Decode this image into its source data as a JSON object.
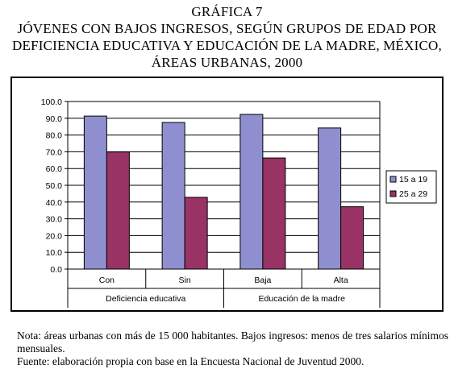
{
  "header": {
    "label": "GRÁFICA 7",
    "title_lines": [
      "JÓVENES CON BAJOS INGRESOS, SEGÚN GRUPOS DE EDAD POR",
      "DEFICIENCIA EDUCATIVA Y EDUCACIÓN DE LA MADRE, MÉXICO,",
      "ÁREAS URBANAS, 2000"
    ]
  },
  "chart_data": {
    "type": "bar",
    "categories": [
      "Con",
      "Sin",
      "Baja",
      "Alta"
    ],
    "groups": [
      {
        "label": "Deficiencia educativa",
        "categories": [
          "Con",
          "Sin"
        ]
      },
      {
        "label": "Educación de la madre",
        "categories": [
          "Baja",
          "Alta"
        ]
      }
    ],
    "series": [
      {
        "name": "15 a 19",
        "values": [
          91.3,
          87.5,
          92.3,
          84.2
        ],
        "color": "#8f8fcf"
      },
      {
        "name": "25 a 29",
        "values": [
          69.9,
          42.8,
          66.3,
          37.2
        ],
        "color": "#993366"
      }
    ],
    "yticks": [
      "0.0",
      "10.0",
      "20.0",
      "30.0",
      "40.0",
      "50.0",
      "60.0",
      "70.0",
      "80.0",
      "90.0",
      "100.0"
    ],
    "ylim": [
      0,
      100
    ],
    "grid": true,
    "plot_background": "#ffffff",
    "legend_position": "right"
  },
  "notes": [
    "Nota: áreas urbanas con más de 15 000 habitantes. Bajos ingresos: menos de tres salarios mínimos mensuales.",
    "Fuente: elaboración propia con base en la Encuesta Nacional de Juventud 2000."
  ]
}
